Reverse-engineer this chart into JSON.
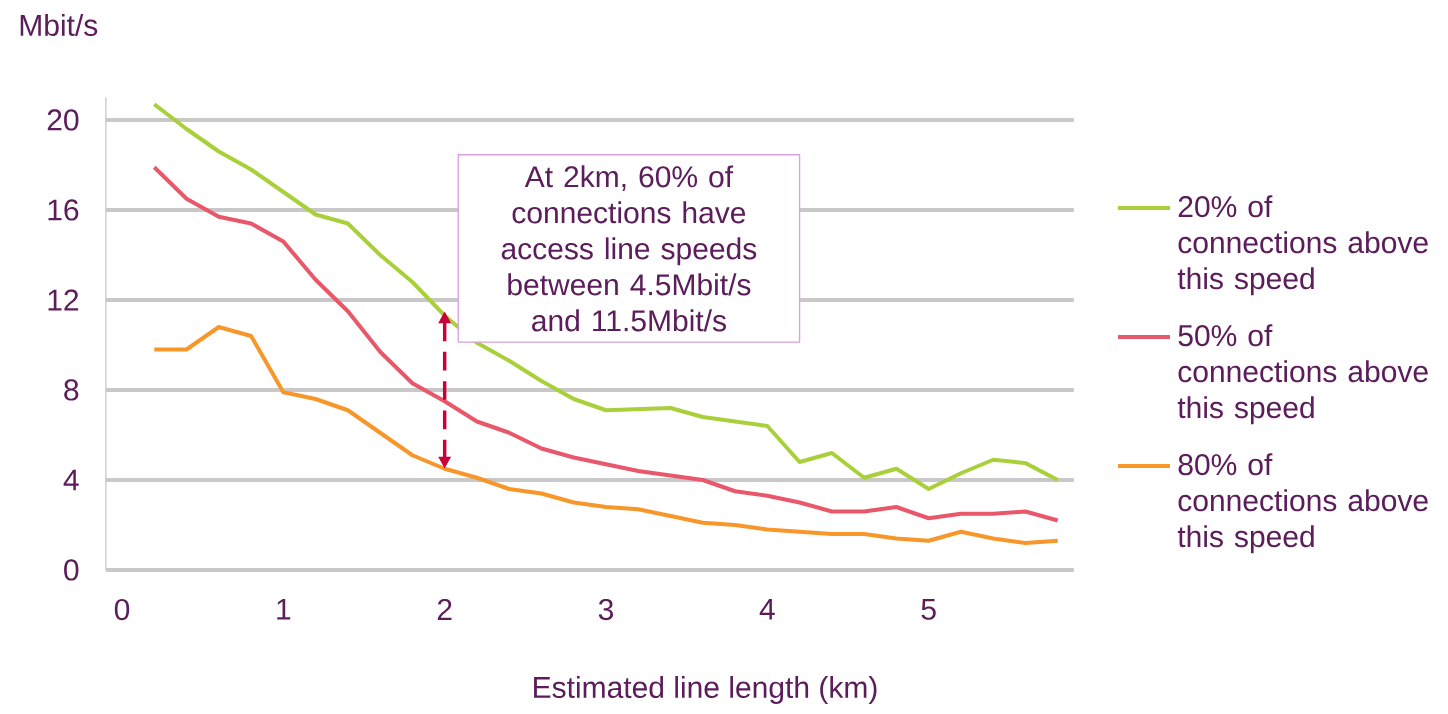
{
  "chart_data": {
    "type": "line",
    "ylabel": "Mbit/s",
    "xlabel": "Estimated line length (km)",
    "x": [
      0.2,
      0.4,
      0.6,
      0.8,
      1.0,
      1.2,
      1.4,
      1.6,
      1.8,
      2.0,
      2.2,
      2.4,
      2.6,
      2.8,
      3.0,
      3.2,
      3.4,
      3.6,
      3.8,
      4.0,
      4.2,
      4.4,
      4.6,
      4.8,
      5.0,
      5.2,
      5.4,
      5.6,
      5.8
    ],
    "series": [
      {
        "name": "20% of connections above this speed",
        "color": "#a9d03a",
        "values": [
          20.7,
          19.6,
          18.6,
          17.8,
          16.8,
          15.8,
          15.4,
          14.0,
          12.8,
          11.3,
          10.1,
          9.3,
          8.4,
          7.6,
          7.1,
          7.15,
          7.2,
          6.8,
          6.6,
          6.4,
          4.8,
          5.2,
          4.1,
          4.5,
          3.6,
          4.3,
          4.9,
          4.75,
          4.0
        ]
      },
      {
        "name": "50% of connections above this speed",
        "color": "#e8586a",
        "values": [
          17.9,
          16.5,
          15.7,
          15.4,
          14.6,
          12.9,
          11.5,
          9.7,
          8.3,
          7.5,
          6.6,
          6.1,
          5.4,
          5.0,
          4.7,
          4.4,
          4.2,
          4.0,
          3.5,
          3.3,
          3.0,
          2.6,
          2.6,
          2.8,
          2.3,
          2.5,
          2.5,
          2.6,
          2.2
        ]
      },
      {
        "name": "80% of connections above this speed",
        "color": "#f7972a",
        "values": [
          9.8,
          9.8,
          10.8,
          10.4,
          7.9,
          7.6,
          7.1,
          6.1,
          5.1,
          4.5,
          4.1,
          3.6,
          3.4,
          3.0,
          2.8,
          2.7,
          2.4,
          2.1,
          2.0,
          1.8,
          1.7,
          1.6,
          1.6,
          1.4,
          1.3,
          1.7,
          1.4,
          1.2,
          1.3
        ]
      }
    ],
    "xlim": [
      -0.1,
      5.9
    ],
    "ylim": [
      0,
      21
    ],
    "xticks": [
      0,
      1,
      2,
      3,
      4,
      5
    ],
    "yticks": [
      0,
      4,
      8,
      12,
      16,
      20
    ],
    "grid": "y",
    "legend": "right",
    "marker": "none",
    "line_style": "solid",
    "annotations": [
      {
        "text": "At 2km, 60% of connections have access line speeds between 4.5Mbit/s and 11.5Mbit/s",
        "x": 2,
        "y": 11.5
      }
    ]
  }
}
